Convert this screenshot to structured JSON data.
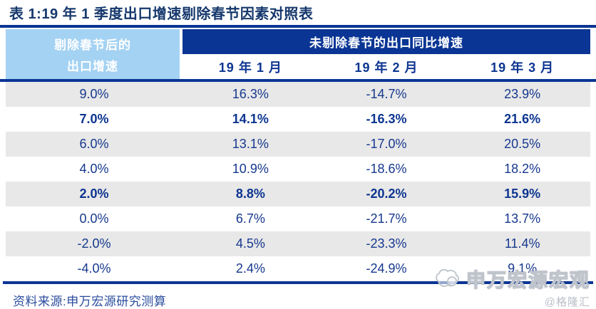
{
  "title": "表 1:19 年 1 季度出口增速剔除春节因素对照表",
  "colors": {
    "dark_blue": "#0a3594",
    "light_blue": "#a4d2f3",
    "title_navy": "#16386d",
    "data_text_blue": "#16388e",
    "row_stripe_gray": "#e8e8e8",
    "watermark_gray": "#bfc4cc"
  },
  "table": {
    "left_header_line1": "剔除春节后的",
    "left_header_line2": "出口增速",
    "group_header": "未剔除春节的出口同比增速",
    "month_headers": [
      "19 年 1 月",
      "19 年 2 月",
      "19 年 3 月"
    ],
    "rows": [
      {
        "values": [
          "9.0%",
          "16.3%",
          "-14.7%",
          "23.9%"
        ],
        "bold": false
      },
      {
        "values": [
          "7.0%",
          "14.1%",
          "-16.3%",
          "21.6%"
        ],
        "bold": true
      },
      {
        "values": [
          "6.0%",
          "13.1%",
          "-17.0%",
          "20.5%"
        ],
        "bold": false
      },
      {
        "values": [
          "4.0%",
          "10.9%",
          "-18.6%",
          "18.2%"
        ],
        "bold": false
      },
      {
        "values": [
          "2.0%",
          "8.8%",
          "-20.2%",
          "15.9%"
        ],
        "bold": true
      },
      {
        "values": [
          "0.0%",
          "6.7%",
          "-21.7%",
          "13.7%"
        ],
        "bold": false
      },
      {
        "values": [
          "-2.0%",
          "4.5%",
          "-23.3%",
          "11.4%"
        ],
        "bold": false
      },
      {
        "values": [
          "-4.0%",
          "2.4%",
          "-24.9%",
          "9.1%"
        ],
        "bold": false
      }
    ]
  },
  "footer": {
    "source": "资料来源:申万宏源研究测算"
  },
  "watermark": {
    "brand": "申万宏源宏观",
    "handle": "@格隆汇"
  },
  "chart_data": {
    "type": "table",
    "title": "表 1:19 年 1 季度出口增速剔除春节因素对照表",
    "columns": [
      "剔除春节后的出口增速",
      "19 年 1 月",
      "19 年 2 月",
      "19 年 3 月"
    ],
    "column_group_header": "未剔除春节的出口同比增速",
    "unit": "%",
    "rows": [
      [
        9.0,
        16.3,
        -14.7,
        23.9
      ],
      [
        7.0,
        14.1,
        -16.3,
        21.6
      ],
      [
        6.0,
        13.1,
        -17.0,
        20.5
      ],
      [
        4.0,
        10.9,
        -18.6,
        18.2
      ],
      [
        2.0,
        8.8,
        -20.2,
        15.9
      ],
      [
        0.0,
        6.7,
        -21.7,
        13.7
      ],
      [
        -2.0,
        4.5,
        -23.3,
        11.4
      ],
      [
        -4.0,
        2.4,
        -24.9,
        9.1
      ]
    ],
    "bold_row_indices": [
      1,
      4
    ],
    "source": "资料来源:申万宏源研究测算"
  }
}
